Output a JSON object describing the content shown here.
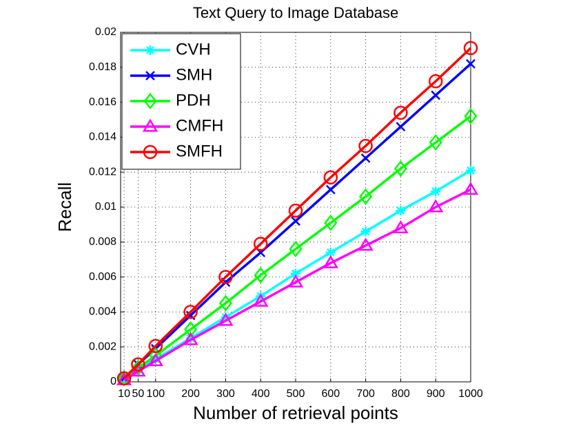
{
  "chart_data": {
    "type": "line",
    "title": "Text Query to Image Database",
    "x_label": "Number of retrieval points",
    "y_label": "Recall",
    "x": [
      10,
      50,
      100,
      200,
      300,
      400,
      500,
      600,
      700,
      800,
      900,
      1000
    ],
    "xlim": [
      0,
      1000
    ],
    "xticks": [
      10,
      50,
      100,
      200,
      300,
      400,
      500,
      600,
      700,
      800,
      900,
      1000
    ],
    "ylim": [
      0,
      0.02
    ],
    "yticks": [
      0,
      0.002,
      0.004,
      0.006,
      0.008,
      0.01,
      0.012,
      0.014,
      0.016,
      0.018,
      0.02
    ],
    "grid": true,
    "legend": "upper left",
    "series": [
      {
        "name": "CVH",
        "color": "#00ffff",
        "marker": "asterisk",
        "values": [
          0.0002,
          0.0007,
          0.0013,
          0.0025,
          0.0037,
          0.0049,
          0.0062,
          0.0074,
          0.0086,
          0.0098,
          0.0109,
          0.0121
        ]
      },
      {
        "name": "SMH",
        "color": "#0000ff",
        "marker": "x",
        "values": [
          0.0002,
          0.001,
          0.0019,
          0.0038,
          0.0057,
          0.0074,
          0.0092,
          0.011,
          0.0128,
          0.0146,
          0.0164,
          0.0182
        ]
      },
      {
        "name": "PDH",
        "color": "#00ff00",
        "marker": "diamond",
        "values": [
          0.0002,
          0.0008,
          0.0015,
          0.003,
          0.0045,
          0.0061,
          0.0076,
          0.0091,
          0.0106,
          0.0122,
          0.0137,
          0.0152
        ]
      },
      {
        "name": "CMFH",
        "color": "#ff00ff",
        "marker": "triangle",
        "values": [
          0.0001,
          0.0006,
          0.0012,
          0.0024,
          0.0035,
          0.0046,
          0.0057,
          0.0068,
          0.0078,
          0.0088,
          0.01,
          0.011
        ]
      },
      {
        "name": "SMFH",
        "color": "#ff0000",
        "marker": "circle",
        "values": [
          0.0002,
          0.001,
          0.00205,
          0.004,
          0.006,
          0.0079,
          0.0098,
          0.0117,
          0.0135,
          0.0154,
          0.0172,
          0.0191
        ]
      }
    ]
  }
}
